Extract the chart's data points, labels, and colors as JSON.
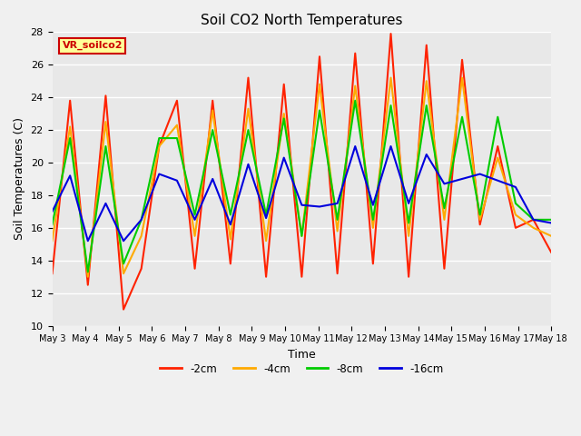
{
  "title": "Soil CO2 North Temperatures",
  "xlabel": "Time",
  "ylabel": "Soil Temperatures (C)",
  "ylim": [
    10,
    28
  ],
  "fig_bg": "#f0f0f0",
  "plot_bg": "#e8e8e8",
  "annotation_text": "VR_soilco2",
  "annotation_bg": "#ffff99",
  "annotation_border": "#cc0000",
  "series": {
    "-2cm": {
      "color": "#ff2200",
      "linewidth": 1.5
    },
    "-4cm": {
      "color": "#ffaa00",
      "linewidth": 1.5
    },
    "-8cm": {
      "color": "#00cc00",
      "linewidth": 1.5
    },
    "-16cm": {
      "color": "#0000dd",
      "linewidth": 1.5
    }
  },
  "x_tick_labels": [
    "May 3",
    "May 4",
    "May 5",
    "May 6",
    "May 7",
    "May 8",
    "May 9",
    "May 10",
    "May 11",
    "May 12",
    "May 13",
    "May 14",
    "May 15",
    "May 16",
    "May 17",
    "May 18"
  ],
  "y_ticks": [
    10,
    12,
    14,
    16,
    18,
    20,
    22,
    24,
    26,
    28
  ],
  "data_2cm": [
    13.2,
    23.8,
    12.5,
    24.1,
    11.0,
    13.5,
    21.0,
    23.8,
    13.5,
    23.8,
    13.8,
    25.2,
    13.0,
    24.8,
    13.0,
    26.5,
    13.2,
    26.7,
    13.8,
    27.9,
    13.0,
    27.2,
    13.5,
    26.3,
    16.2,
    21.0,
    16.0,
    16.5,
    14.5
  ],
  "data_4cm": [
    15.2,
    22.2,
    13.0,
    22.5,
    13.2,
    15.5,
    21.0,
    22.3,
    15.5,
    23.2,
    15.3,
    23.3,
    15.2,
    23.0,
    15.5,
    24.8,
    15.8,
    24.7,
    16.0,
    25.2,
    15.5,
    25.0,
    16.5,
    25.2,
    16.5,
    20.3,
    16.8,
    16.0,
    15.5
  ],
  "data_8cm": [
    16.2,
    21.5,
    13.3,
    21.0,
    13.8,
    16.5,
    21.5,
    21.5,
    16.8,
    22.0,
    16.8,
    22.0,
    16.8,
    22.7,
    15.5,
    23.2,
    16.5,
    23.8,
    16.5,
    23.5,
    16.3,
    23.5,
    17.2,
    22.8,
    16.8,
    22.8,
    17.5,
    16.5,
    16.5
  ],
  "data_16cm": [
    17.0,
    19.2,
    15.2,
    17.5,
    15.2,
    16.5,
    19.3,
    18.9,
    16.5,
    19.0,
    16.2,
    19.9,
    16.6,
    20.3,
    17.4,
    17.3,
    17.5,
    21.0,
    17.4,
    21.0,
    17.5,
    20.5,
    18.7,
    19.0,
    19.3,
    18.9,
    18.5,
    16.5,
    16.3
  ]
}
